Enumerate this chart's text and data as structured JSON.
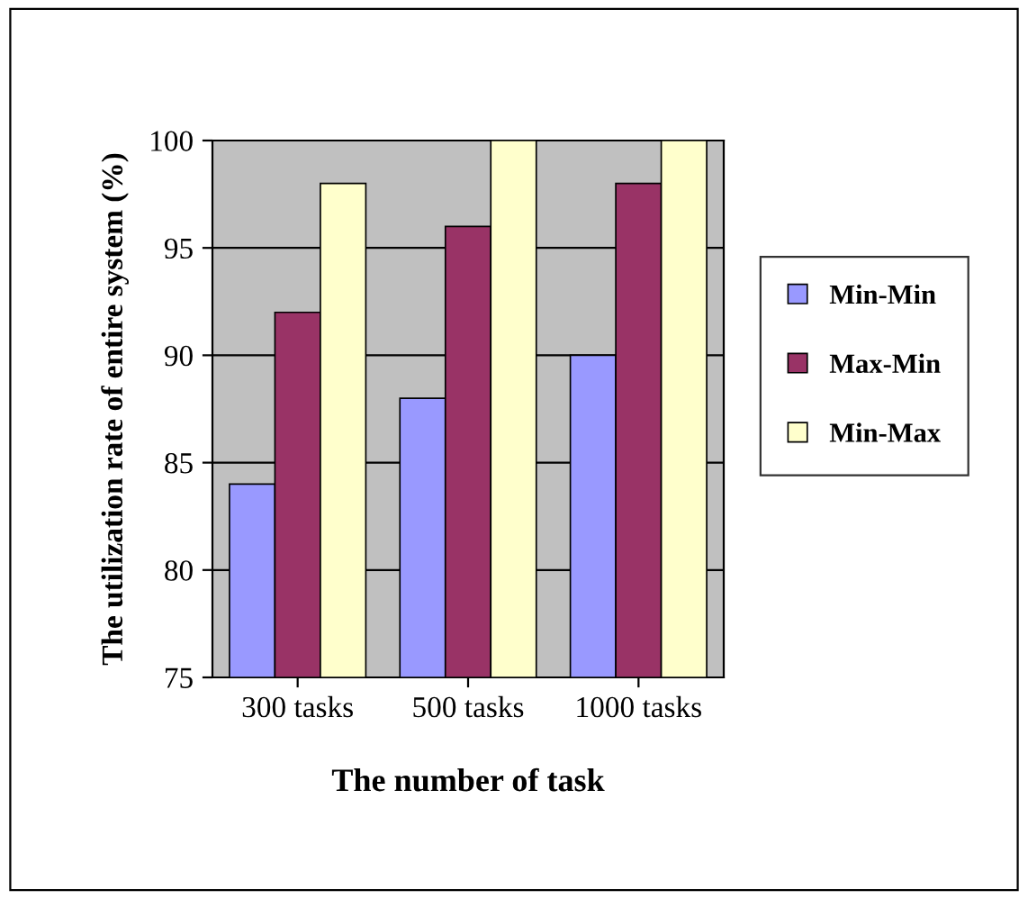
{
  "chart_data": {
    "type": "bar",
    "xlabel": "The number of task",
    "ylabel": "The utilization rate of entire system (%)",
    "categories": [
      "300 tasks",
      "500 tasks",
      "1000 tasks"
    ],
    "series": [
      {
        "name": "Min-Min",
        "color": "#9999ff",
        "values": [
          84,
          88,
          90
        ]
      },
      {
        "name": "Max-Min",
        "color": "#993366",
        "values": [
          92,
          96,
          98
        ]
      },
      {
        "name": "Min-Max",
        "color": "#ffffcc",
        "values": [
          98,
          100,
          100
        ]
      }
    ],
    "ylim": [
      75,
      100
    ],
    "yticks": [
      75,
      80,
      85,
      90,
      95,
      100
    ],
    "grid": "y",
    "legend": "right"
  }
}
